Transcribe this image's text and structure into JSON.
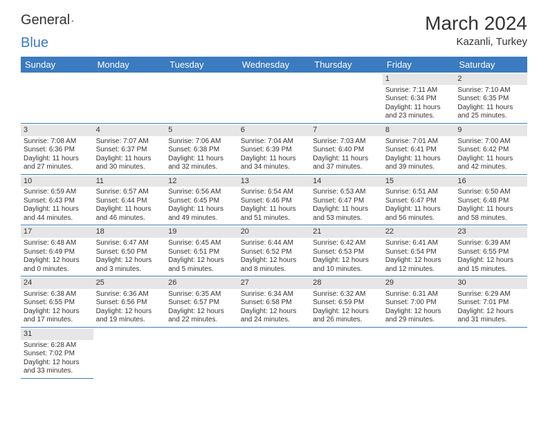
{
  "brand": {
    "part1": "General",
    "part2": "Blue"
  },
  "title": "March 2024",
  "location": "Kazanli, Turkey",
  "colors": {
    "header_bg": "#3b7bbf",
    "daynum_bg": "#e6e6e6",
    "rule": "#3b7bbf"
  },
  "weekdays": [
    "Sunday",
    "Monday",
    "Tuesday",
    "Wednesday",
    "Thursday",
    "Friday",
    "Saturday"
  ],
  "weeks": [
    [
      null,
      null,
      null,
      null,
      null,
      {
        "n": "1",
        "sr": "7:11 AM",
        "ss": "6:34 PM",
        "dl": "11 hours and 23 minutes."
      },
      {
        "n": "2",
        "sr": "7:10 AM",
        "ss": "6:35 PM",
        "dl": "11 hours and 25 minutes."
      }
    ],
    [
      {
        "n": "3",
        "sr": "7:08 AM",
        "ss": "6:36 PM",
        "dl": "11 hours and 27 minutes."
      },
      {
        "n": "4",
        "sr": "7:07 AM",
        "ss": "6:37 PM",
        "dl": "11 hours and 30 minutes."
      },
      {
        "n": "5",
        "sr": "7:06 AM",
        "ss": "6:38 PM",
        "dl": "11 hours and 32 minutes."
      },
      {
        "n": "6",
        "sr": "7:04 AM",
        "ss": "6:39 PM",
        "dl": "11 hours and 34 minutes."
      },
      {
        "n": "7",
        "sr": "7:03 AM",
        "ss": "6:40 PM",
        "dl": "11 hours and 37 minutes."
      },
      {
        "n": "8",
        "sr": "7:01 AM",
        "ss": "6:41 PM",
        "dl": "11 hours and 39 minutes."
      },
      {
        "n": "9",
        "sr": "7:00 AM",
        "ss": "6:42 PM",
        "dl": "11 hours and 42 minutes."
      }
    ],
    [
      {
        "n": "10",
        "sr": "6:59 AM",
        "ss": "6:43 PM",
        "dl": "11 hours and 44 minutes."
      },
      {
        "n": "11",
        "sr": "6:57 AM",
        "ss": "6:44 PM",
        "dl": "11 hours and 46 minutes."
      },
      {
        "n": "12",
        "sr": "6:56 AM",
        "ss": "6:45 PM",
        "dl": "11 hours and 49 minutes."
      },
      {
        "n": "13",
        "sr": "6:54 AM",
        "ss": "6:46 PM",
        "dl": "11 hours and 51 minutes."
      },
      {
        "n": "14",
        "sr": "6:53 AM",
        "ss": "6:47 PM",
        "dl": "11 hours and 53 minutes."
      },
      {
        "n": "15",
        "sr": "6:51 AM",
        "ss": "6:47 PM",
        "dl": "11 hours and 56 minutes."
      },
      {
        "n": "16",
        "sr": "6:50 AM",
        "ss": "6:48 PM",
        "dl": "11 hours and 58 minutes."
      }
    ],
    [
      {
        "n": "17",
        "sr": "6:48 AM",
        "ss": "6:49 PM",
        "dl": "12 hours and 0 minutes."
      },
      {
        "n": "18",
        "sr": "6:47 AM",
        "ss": "6:50 PM",
        "dl": "12 hours and 3 minutes."
      },
      {
        "n": "19",
        "sr": "6:45 AM",
        "ss": "6:51 PM",
        "dl": "12 hours and 5 minutes."
      },
      {
        "n": "20",
        "sr": "6:44 AM",
        "ss": "6:52 PM",
        "dl": "12 hours and 8 minutes."
      },
      {
        "n": "21",
        "sr": "6:42 AM",
        "ss": "6:53 PM",
        "dl": "12 hours and 10 minutes."
      },
      {
        "n": "22",
        "sr": "6:41 AM",
        "ss": "6:54 PM",
        "dl": "12 hours and 12 minutes."
      },
      {
        "n": "23",
        "sr": "6:39 AM",
        "ss": "6:55 PM",
        "dl": "12 hours and 15 minutes."
      }
    ],
    [
      {
        "n": "24",
        "sr": "6:38 AM",
        "ss": "6:55 PM",
        "dl": "12 hours and 17 minutes."
      },
      {
        "n": "25",
        "sr": "6:36 AM",
        "ss": "6:56 PM",
        "dl": "12 hours and 19 minutes."
      },
      {
        "n": "26",
        "sr": "6:35 AM",
        "ss": "6:57 PM",
        "dl": "12 hours and 22 minutes."
      },
      {
        "n": "27",
        "sr": "6:34 AM",
        "ss": "6:58 PM",
        "dl": "12 hours and 24 minutes."
      },
      {
        "n": "28",
        "sr": "6:32 AM",
        "ss": "6:59 PM",
        "dl": "12 hours and 26 minutes."
      },
      {
        "n": "29",
        "sr": "6:31 AM",
        "ss": "7:00 PM",
        "dl": "12 hours and 29 minutes."
      },
      {
        "n": "30",
        "sr": "6:29 AM",
        "ss": "7:01 PM",
        "dl": "12 hours and 31 minutes."
      }
    ],
    [
      {
        "n": "31",
        "sr": "6:28 AM",
        "ss": "7:02 PM",
        "dl": "12 hours and 33 minutes."
      },
      null,
      null,
      null,
      null,
      null,
      null
    ]
  ],
  "labels": {
    "sunrise": "Sunrise:",
    "sunset": "Sunset:",
    "daylight": "Daylight:"
  }
}
